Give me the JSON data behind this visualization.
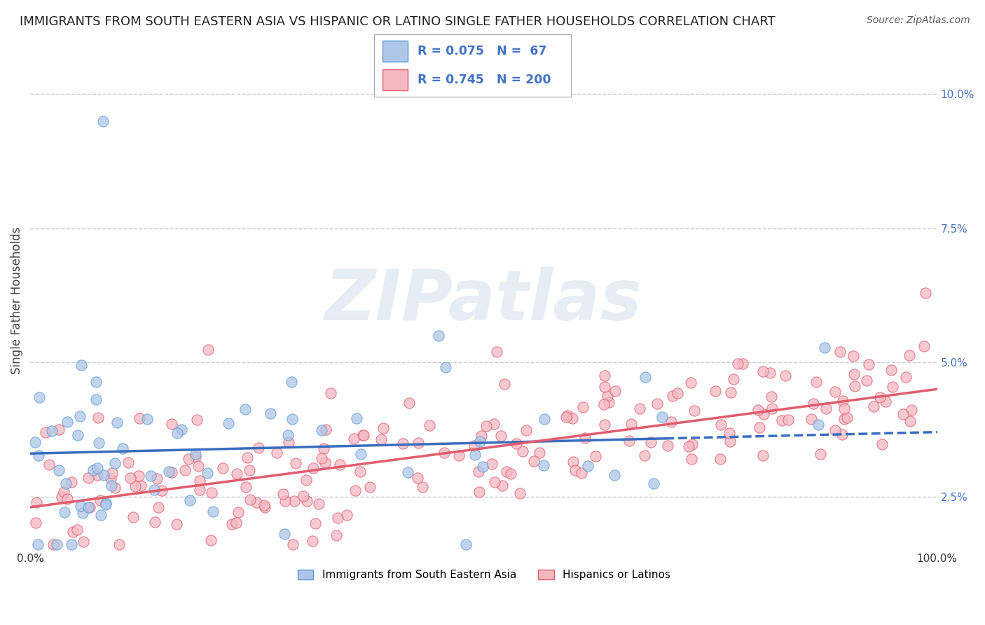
{
  "title": "IMMIGRANTS FROM SOUTH EASTERN ASIA VS HISPANIC OR LATINO SINGLE FATHER HOUSEHOLDS CORRELATION CHART",
  "source": "Source: ZipAtlas.com",
  "ylabel": "Single Father Households",
  "watermark": "ZIPatlas",
  "xlim": [
    0,
    100
  ],
  "ylim_min": 1.5,
  "ylim_max": 10.8,
  "yticks": [
    2.5,
    5.0,
    7.5,
    10.0
  ],
  "ytick_labels": [
    "2.5%",
    "5.0%",
    "7.5%",
    "10.0%"
  ],
  "xtick_labels": [
    "0.0%",
    "100.0%"
  ],
  "series": [
    {
      "name": "Immigrants from South Eastern Asia",
      "R": 0.075,
      "N": 67,
      "color": "#aec6e8",
      "edge_color": "#5b9bd5",
      "trend_color": "#3a6dbf",
      "trend_style": "-",
      "trend_lw": 2.5
    },
    {
      "name": "Hispanics or Latinos",
      "R": 0.745,
      "N": 200,
      "color": "#f4b8c1",
      "edge_color": "#e05c6e",
      "trend_color": "#e05c6e",
      "trend_style": "-",
      "trend_lw": 2.5
    }
  ],
  "blue_trend_intercept": 3.3,
  "blue_trend_slope": 0.004,
  "blue_x_max": 70,
  "blue_dashed_start": 70,
  "pink_trend_intercept": 2.3,
  "pink_trend_slope": 0.022,
  "title_fontsize": 13,
  "source_fontsize": 10,
  "axis_label_fontsize": 12,
  "watermark_fontsize": 72,
  "watermark_color": "#c8d8e8",
  "watermark_alpha": 0.45,
  "background_color": "#ffffff",
  "grid_color": "#b0b8c8",
  "grid_alpha": 0.7
}
